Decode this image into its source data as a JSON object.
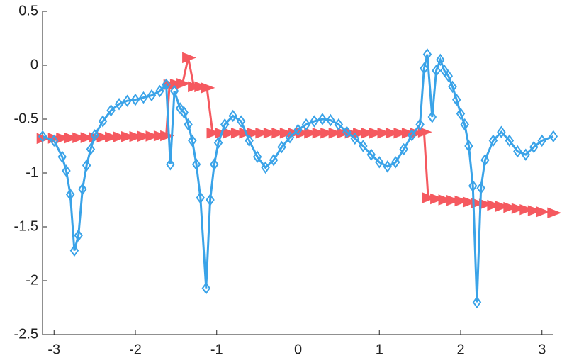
{
  "chart_data": {
    "type": "line",
    "xlim": [
      -3.1416,
      3.1416
    ],
    "ylim": [
      -2.5,
      0.5
    ],
    "xticks": [
      -3,
      -2,
      -1,
      0,
      1,
      2,
      3
    ],
    "yticks": [
      0.5,
      0,
      -0.5,
      -1,
      -1.5,
      -2,
      -2.5
    ],
    "series": [
      {
        "color": "#f5595f",
        "marker": "triangle-right",
        "x": [
          -3.14,
          -3.0,
          -2.9,
          -2.8,
          -2.7,
          -2.6,
          -2.5,
          -2.4,
          -2.3,
          -2.2,
          -2.1,
          -2.0,
          -1.9,
          -1.8,
          -1.7,
          -1.62,
          -1.58,
          -1.5,
          -1.42,
          -1.35,
          -1.28,
          -1.2,
          -1.12,
          -1.05,
          -0.95,
          -0.85,
          -0.75,
          -0.65,
          -0.55,
          -0.45,
          -0.35,
          -0.25,
          -0.15,
          -0.05,
          0.05,
          0.15,
          0.25,
          0.35,
          0.45,
          0.55,
          0.65,
          0.75,
          0.85,
          0.95,
          1.05,
          1.15,
          1.25,
          1.35,
          1.45,
          1.55,
          1.6,
          1.7,
          1.8,
          1.9,
          2.0,
          2.1,
          2.2,
          2.3,
          2.4,
          2.5,
          2.6,
          2.7,
          2.8,
          2.9,
          3.0,
          3.14
        ],
        "values": [
          -0.68,
          -0.678,
          -0.676,
          -0.675,
          -0.673,
          -0.672,
          -0.67,
          -0.668,
          -0.667,
          -0.665,
          -0.663,
          -0.662,
          -0.66,
          -0.658,
          -0.656,
          -0.655,
          -0.18,
          -0.175,
          -0.17,
          0.07,
          -0.2,
          -0.2,
          -0.21,
          -0.63,
          -0.63,
          -0.63,
          -0.63,
          -0.63,
          -0.63,
          -0.63,
          -0.63,
          -0.63,
          -0.63,
          -0.63,
          -0.63,
          -0.63,
          -0.63,
          -0.63,
          -0.63,
          -0.63,
          -0.63,
          -0.63,
          -0.63,
          -0.63,
          -0.63,
          -0.63,
          -0.63,
          -0.63,
          -0.63,
          -0.62,
          -1.23,
          -1.24,
          -1.25,
          -1.255,
          -1.26,
          -1.27,
          -1.28,
          -1.29,
          -1.3,
          -1.31,
          -1.32,
          -1.33,
          -1.34,
          -1.35,
          -1.36,
          -1.37
        ]
      },
      {
        "color": "#3aa3e8",
        "marker": "diamond",
        "x": [
          -3.14,
          -3.0,
          -2.9,
          -2.85,
          -2.8,
          -2.75,
          -2.7,
          -2.65,
          -2.6,
          -2.55,
          -2.5,
          -2.4,
          -2.3,
          -2.2,
          -2.1,
          -2.0,
          -1.9,
          -1.8,
          -1.7,
          -1.62,
          -1.57,
          -1.52,
          -1.45,
          -1.4,
          -1.35,
          -1.3,
          -1.25,
          -1.2,
          -1.13,
          -1.08,
          -1.03,
          -0.98,
          -0.9,
          -0.8,
          -0.7,
          -0.6,
          -0.5,
          -0.4,
          -0.3,
          -0.2,
          -0.1,
          0.0,
          0.1,
          0.2,
          0.3,
          0.4,
          0.5,
          0.6,
          0.7,
          0.8,
          0.9,
          1.0,
          1.1,
          1.2,
          1.3,
          1.4,
          1.5,
          1.55,
          1.59,
          1.65,
          1.7,
          1.75,
          1.8,
          1.85,
          1.9,
          1.95,
          2.0,
          2.05,
          2.1,
          2.15,
          2.2,
          2.25,
          2.3,
          2.4,
          2.5,
          2.6,
          2.7,
          2.8,
          2.9,
          3.0,
          3.14
        ],
        "values": [
          -0.66,
          -0.7,
          -0.85,
          -0.98,
          -1.2,
          -1.72,
          -1.58,
          -1.15,
          -0.93,
          -0.78,
          -0.65,
          -0.52,
          -0.42,
          -0.36,
          -0.33,
          -0.32,
          -0.3,
          -0.28,
          -0.24,
          -0.18,
          -0.92,
          -0.24,
          -0.4,
          -0.44,
          -0.55,
          -0.7,
          -0.92,
          -1.23,
          -2.07,
          -1.25,
          -0.92,
          -0.72,
          -0.55,
          -0.47,
          -0.52,
          -0.7,
          -0.85,
          -0.95,
          -0.88,
          -0.76,
          -0.67,
          -0.6,
          -0.55,
          -0.52,
          -0.5,
          -0.51,
          -0.55,
          -0.62,
          -0.68,
          -0.75,
          -0.83,
          -0.9,
          -0.94,
          -0.9,
          -0.78,
          -0.65,
          -0.55,
          -0.03,
          0.1,
          -0.48,
          -0.05,
          0.05,
          -0.05,
          -0.1,
          -0.2,
          -0.32,
          -0.45,
          -0.55,
          -0.75,
          -1.12,
          -2.2,
          -1.14,
          -0.88,
          -0.7,
          -0.62,
          -0.7,
          -0.8,
          -0.83,
          -0.76,
          -0.7,
          -0.66
        ]
      }
    ]
  }
}
